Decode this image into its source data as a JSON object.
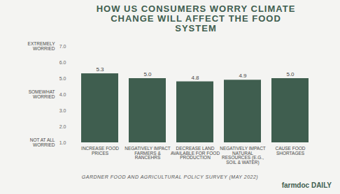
{
  "chart_data": {
    "type": "bar",
    "title": "HOW US CONSUMERS WORRY CLIMATE CHANGE WILL AFFECT THE FOOD SYSTEM",
    "categories": [
      "INCREASE FOOD PRICES",
      "NEGATIVELY IMPACT FARMERS & RANCEHRS",
      "DECREASE LAND AVAILABLE FOR FOOD PRODUCTION",
      "NEGATIVELY IMPACT NATURAL RESOURCES (E.G., SOIL & WATER)",
      "CAUSE FOOD SHORTAGES"
    ],
    "values": [
      5.3,
      5.0,
      4.8,
      4.9,
      5.0
    ],
    "value_labels": [
      "5.3",
      "5.0",
      "4.8",
      "4.9",
      "5.0"
    ],
    "data_labels": true,
    "color": "#3f5e4f",
    "ylim": [
      1,
      7
    ],
    "yticks": [
      1,
      2,
      3,
      4,
      5,
      6,
      7
    ],
    "grid": false,
    "annotations": [
      {
        "text": "EXTREMELY WORRIED",
        "y": 7
      },
      {
        "text": "SOMEWHAT WORRIED",
        "y": 4
      },
      {
        "text": "NOT AT ALL WORRIED",
        "y": 1
      }
    ],
    "caption": "GARDNER FOOD AND AGRICULTURAL POLICY SURVEY (MAY 2022)",
    "credit": "farmdoc DAILY"
  }
}
